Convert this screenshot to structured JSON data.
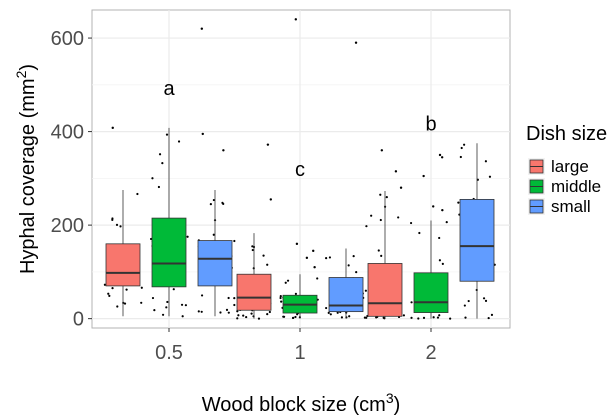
{
  "chart_data": {
    "type": "box",
    "title": "",
    "xlabel_main": "Wood block size (cm",
    "xlabel_sup": "3",
    "xlabel_end": ")",
    "ylabel_main": "Hyphal coverage (mm",
    "ylabel_sup": "2",
    "ylabel_end": ")",
    "ylim": [
      -20,
      660
    ],
    "yticks": [
      0,
      200,
      400,
      600
    ],
    "categories": [
      "0.5",
      "1",
      "2"
    ],
    "grid": true,
    "legend": {
      "title": "Dish size",
      "placement": "right",
      "entries": [
        "large",
        "middle",
        "small"
      ]
    },
    "series": [
      {
        "name": "large",
        "color": "#F8766D",
        "boxes": [
          {
            "category": "0.5",
            "min": 5,
            "q1": 70,
            "median": 98,
            "q3": 160,
            "max": 275
          },
          {
            "category": "1",
            "min": 0,
            "q1": 18,
            "median": 45,
            "q3": 95,
            "max": 183
          },
          {
            "category": "2",
            "min": 0,
            "q1": 5,
            "median": 33,
            "q3": 118,
            "max": 273
          }
        ],
        "outliers": [
          {
            "category": "0.5",
            "values": [
              408
            ]
          },
          {
            "category": "1",
            "values": [
              255,
              372
            ]
          },
          {
            "category": "2",
            "values": [
              280,
              315,
              360
            ]
          }
        ]
      },
      {
        "name": "middle",
        "color": "#00BA38",
        "boxes": [
          {
            "category": "0.5",
            "min": 5,
            "q1": 68,
            "median": 118,
            "q3": 215,
            "max": 408
          },
          {
            "category": "1",
            "min": 0,
            "q1": 12,
            "median": 30,
            "q3": 50,
            "max": 95
          },
          {
            "category": "2",
            "min": 0,
            "q1": 13,
            "median": 35,
            "q3": 98,
            "max": 210
          }
        ],
        "outliers": [
          {
            "category": "0.5",
            "values": []
          },
          {
            "category": "1",
            "values": [
              110,
              130,
              145,
              160,
              640
            ]
          },
          {
            "category": "2",
            "values": [
              232,
              240,
              305,
              345,
              350
            ]
          }
        ]
      },
      {
        "name": "small",
        "color": "#619CFF",
        "boxes": [
          {
            "category": "0.5",
            "min": 5,
            "q1": 70,
            "median": 128,
            "q3": 167,
            "max": 275
          },
          {
            "category": "1",
            "min": 0,
            "q1": 15,
            "median": 28,
            "q3": 88,
            "max": 150
          },
          {
            "category": "2",
            "min": 0,
            "q1": 80,
            "median": 155,
            "q3": 255,
            "max": 375
          }
        ],
        "outliers": [
          {
            "category": "0.5",
            "values": [
              360,
              395,
              620
            ]
          },
          {
            "category": "1",
            "values": [
              590
            ]
          },
          {
            "category": "2",
            "values": []
          }
        ]
      }
    ],
    "annotations": [
      {
        "text": "a",
        "category": "0.5",
        "y": 478
      },
      {
        "text": "c",
        "category": "1",
        "y": 305
      },
      {
        "text": "b",
        "category": "2",
        "y": 402
      }
    ]
  }
}
